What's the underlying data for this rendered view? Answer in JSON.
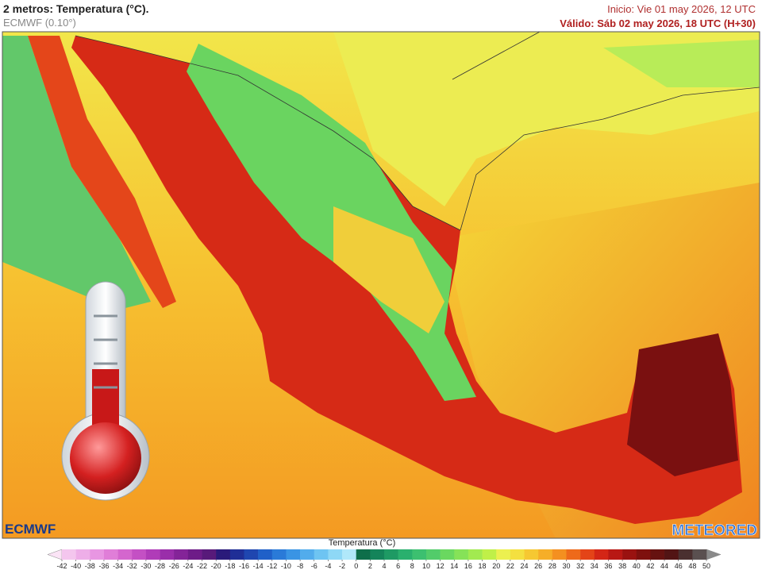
{
  "header": {
    "title": "2 metros: Temperatura (°C).",
    "model": "ECMWF (0.10°)",
    "init": "Inicio: Vie 01 may 2026, 12 UTC",
    "valid": "Válido: Sáb 02 may 2026, 18 UTC (H+30)"
  },
  "logos": {
    "left": "ECMWF",
    "right": "METEORED"
  },
  "colorbar": {
    "label": "Temperatura (°C)",
    "ticks": [
      -42,
      -40,
      -38,
      -36,
      -34,
      -32,
      -30,
      -28,
      -26,
      -24,
      -22,
      -20,
      -18,
      -16,
      -14,
      -12,
      -10,
      -8,
      -6,
      -4,
      -2,
      0,
      2,
      4,
      6,
      8,
      10,
      12,
      14,
      16,
      18,
      20,
      22,
      24,
      26,
      28,
      30,
      32,
      34,
      36,
      38,
      40,
      42,
      44,
      46,
      48,
      50
    ],
    "colors": [
      "#f4c6ee",
      "#eeaee8",
      "#e896e2",
      "#e07ed8",
      "#d466ce",
      "#c450c4",
      "#b03cb8",
      "#9a2eaa",
      "#842498",
      "#6e1c88",
      "#581a7a",
      "#2a1a7a",
      "#1f2e96",
      "#1f46b0",
      "#2060c8",
      "#2a7ad8",
      "#3a94e4",
      "#52acec",
      "#6ec4f2",
      "#8ed8f6",
      "#b0e8fa",
      "#0e6e4a",
      "#14845a",
      "#1e9a64",
      "#2ab06e",
      "#3cc070",
      "#52cc6a",
      "#6ad860",
      "#86e258",
      "#a2ea50",
      "#c0f048",
      "#ecf050",
      "#f4e040",
      "#f6c832",
      "#f6ae28",
      "#f49020",
      "#ee6a1a",
      "#e44418",
      "#d42616",
      "#b81814",
      "#9a1210",
      "#7e100e",
      "#661210",
      "#521414",
      "#4a3030",
      "#5a5050"
    ],
    "under_color": "#fbe4f6",
    "over_color": "#8a8a8a"
  }
}
